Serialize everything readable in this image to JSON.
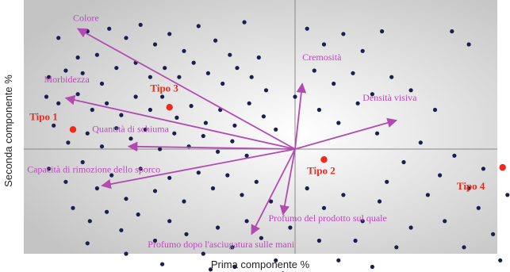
{
  "chart_data": {
    "type": "scatter",
    "title": "",
    "xlabel": "Prima componente   %",
    "ylabel": "Seconda componente   %",
    "xlim": [
      -1,
      1
    ],
    "ylim": [
      -1,
      1
    ],
    "grid": false,
    "colors": {
      "background_center": "#ffffff",
      "background_edge": "#c4c4c4",
      "points": "#1a1f4d",
      "arrows": "#b24ab2",
      "variable_labels": "#c046c0",
      "types": "#ee2a1c"
    },
    "loading_vectors": [
      {
        "label": "Colore",
        "x": -0.9,
        "y": 0.92,
        "label_x": -0.92,
        "label_y": 0.98
      },
      {
        "label": "Cremosità",
        "x": 0.03,
        "y": 0.5,
        "label_x": 0.03,
        "label_y": 0.68
      },
      {
        "label": "Morbidezza",
        "x": -0.95,
        "y": 0.39,
        "label_x": -1.04,
        "label_y": 0.51
      },
      {
        "label": "Densità visiva",
        "x": 0.42,
        "y": 0.22,
        "label_x": 0.28,
        "label_y": 0.37
      },
      {
        "label": "Quantità di schiuma",
        "x": -0.69,
        "y": 0.02,
        "label_x": -0.84,
        "label_y": 0.13
      },
      {
        "label": "Capacità di rimozione dello sporco",
        "x": -0.8,
        "y": -0.28,
        "label_x": -1.11,
        "label_y": -0.18
      },
      {
        "label": "Profumo del prodotto sul quale",
        "x": -0.05,
        "y": -0.5,
        "label_x": -0.11,
        "label_y": -0.55
      },
      {
        "label": "Profumo dopo l'asciugatura sulle mani",
        "x": -0.18,
        "y": -0.65,
        "label_x": -0.61,
        "label_y": -0.75
      }
    ],
    "types": [
      {
        "label": "Tipo 1",
        "x": -0.92,
        "y": 0.15,
        "label_x": -1.1,
        "label_y": 0.22
      },
      {
        "label": "Tipo 2",
        "x": 0.12,
        "y": -0.08,
        "label_x": 0.05,
        "label_y": -0.19
      },
      {
        "label": "Tipo 3",
        "x": -0.52,
        "y": 0.32,
        "label_x": -0.6,
        "label_y": 0.44
      },
      {
        "label": "Tipo 4",
        "x": 0.86,
        "y": -0.14,
        "label_x": 0.67,
        "label_y": -0.31
      }
    ],
    "points": [
      [
        -0.98,
        0.85
      ],
      [
        -0.86,
        0.9
      ],
      [
        -0.82,
        0.72
      ],
      [
        -0.77,
        0.92
      ],
      [
        -0.7,
        0.85
      ],
      [
        -0.64,
        0.95
      ],
      [
        -0.58,
        0.8
      ],
      [
        -0.52,
        0.88
      ],
      [
        -0.46,
        0.75
      ],
      [
        -0.4,
        0.94
      ],
      [
        -0.33,
        0.83
      ],
      [
        -0.27,
        0.72
      ],
      [
        -0.21,
        0.97
      ],
      [
        -0.15,
        0.7
      ],
      [
        -0.9,
        0.7
      ],
      [
        -0.95,
        0.6
      ],
      [
        -1.02,
        0.55
      ],
      [
        -0.88,
        0.58
      ],
      [
        -0.8,
        0.5
      ],
      [
        -0.74,
        0.62
      ],
      [
        -0.66,
        0.66
      ],
      [
        -0.6,
        0.55
      ],
      [
        -0.54,
        0.62
      ],
      [
        -0.48,
        0.55
      ],
      [
        -0.42,
        0.66
      ],
      [
        -0.36,
        0.58
      ],
      [
        -0.3,
        0.5
      ],
      [
        -0.24,
        0.62
      ],
      [
        -0.18,
        0.55
      ],
      [
        -0.12,
        0.45
      ],
      [
        -1.03,
        0.4
      ],
      [
        -0.98,
        0.35
      ],
      [
        -0.9,
        0.42
      ],
      [
        -0.84,
        0.3
      ],
      [
        -0.78,
        0.35
      ],
      [
        -0.72,
        0.26
      ],
      [
        -0.66,
        0.4
      ],
      [
        -0.6,
        0.3
      ],
      [
        -0.55,
        0.4
      ],
      [
        -0.49,
        0.24
      ],
      [
        -0.43,
        0.33
      ],
      [
        -0.37,
        0.2
      ],
      [
        -0.31,
        0.3
      ],
      [
        -0.25,
        0.18
      ],
      [
        -0.19,
        0.35
      ],
      [
        -0.13,
        0.25
      ],
      [
        -0.08,
        0.15
      ],
      [
        -1.0,
        0.18
      ],
      [
        -0.94,
        0.05
      ],
      [
        -0.86,
        0.12
      ],
      [
        -0.8,
        0.02
      ],
      [
        -0.74,
        0.16
      ],
      [
        -0.68,
        0.08
      ],
      [
        -0.62,
        0.15
      ],
      [
        -0.56,
        0.0
      ],
      [
        -0.5,
        0.12
      ],
      [
        -0.44,
        0.02
      ],
      [
        -0.38,
        0.1
      ],
      [
        -0.32,
        -0.02
      ],
      [
        -0.26,
        0.06
      ],
      [
        -0.2,
        -0.05
      ],
      [
        -1.02,
        -0.15
      ],
      [
        -0.95,
        -0.25
      ],
      [
        -0.88,
        -0.1
      ],
      [
        -0.82,
        -0.3
      ],
      [
        -0.76,
        -0.2
      ],
      [
        -0.7,
        -0.38
      ],
      [
        -0.64,
        -0.15
      ],
      [
        -0.58,
        -0.32
      ],
      [
        -0.52,
        -0.22
      ],
      [
        -0.46,
        -0.4
      ],
      [
        -0.4,
        -0.18
      ],
      [
        -0.34,
        -0.3
      ],
      [
        -0.28,
        -0.2
      ],
      [
        -0.22,
        -0.35
      ],
      [
        -0.16,
        -0.25
      ],
      [
        -0.1,
        -0.4
      ],
      [
        -0.92,
        -0.45
      ],
      [
        -0.85,
        -0.55
      ],
      [
        -0.78,
        -0.48
      ],
      [
        -0.72,
        -0.62
      ],
      [
        -0.65,
        -0.5
      ],
      [
        -0.58,
        -0.7
      ],
      [
        -0.52,
        -0.55
      ],
      [
        -0.45,
        -0.65
      ],
      [
        -0.38,
        -0.8
      ],
      [
        -0.32,
        -0.6
      ],
      [
        -0.26,
        -0.75
      ],
      [
        -0.2,
        -0.55
      ],
      [
        -0.14,
        -0.68
      ],
      [
        -0.08,
        -0.85
      ],
      [
        -0.02,
        -0.6
      ],
      [
        -0.35,
        -0.92
      ],
      [
        -0.25,
        -0.9
      ],
      [
        -0.55,
        -0.88
      ],
      [
        -0.7,
        -0.8
      ],
      [
        -0.86,
        -0.72
      ],
      [
        0.05,
        0.92
      ],
      [
        0.12,
        0.8
      ],
      [
        0.2,
        0.88
      ],
      [
        0.28,
        0.75
      ],
      [
        0.36,
        0.9
      ],
      [
        0.08,
        0.6
      ],
      [
        0.16,
        0.5
      ],
      [
        0.24,
        0.58
      ],
      [
        0.32,
        0.42
      ],
      [
        0.4,
        0.55
      ],
      [
        0.48,
        0.45
      ],
      [
        0.1,
        0.3
      ],
      [
        0.18,
        0.2
      ],
      [
        0.26,
        0.35
      ],
      [
        0.34,
        0.12
      ],
      [
        0.05,
        -0.3
      ],
      [
        0.12,
        -0.45
      ],
      [
        0.2,
        -0.35
      ],
      [
        0.28,
        -0.55
      ],
      [
        0.35,
        -0.4
      ],
      [
        0.1,
        -0.7
      ],
      [
        0.18,
        -0.85
      ],
      [
        0.25,
        -0.7
      ],
      [
        0.32,
        -0.9
      ],
      [
        0.42,
        -0.75
      ],
      [
        0.48,
        -0.6
      ],
      [
        0.38,
        -0.25
      ],
      [
        0.45,
        -0.1
      ],
      [
        0.52,
        0.05
      ],
      [
        0.55,
        -0.35
      ],
      [
        0.6,
        -0.2
      ],
      [
        0.62,
        -0.55
      ],
      [
        0.66,
        -0.05
      ],
      [
        0.7,
        -0.75
      ],
      [
        0.72,
        -0.3
      ],
      [
        0.76,
        -0.45
      ],
      [
        0.78,
        -0.15
      ],
      [
        0.82,
        -0.65
      ],
      [
        0.85,
        -0.85
      ],
      [
        0.88,
        -0.35
      ],
      [
        0.92,
        0.35
      ],
      [
        0.95,
        0.55
      ],
      [
        0.98,
        0.75
      ],
      [
        0.9,
        -0.1
      ],
      [
        0.65,
        0.9
      ],
      [
        0.72,
        0.8
      ],
      [
        0.58,
        0.3
      ],
      [
        0.0,
        0.4
      ],
      [
        -0.05,
        -0.95
      ]
    ]
  }
}
